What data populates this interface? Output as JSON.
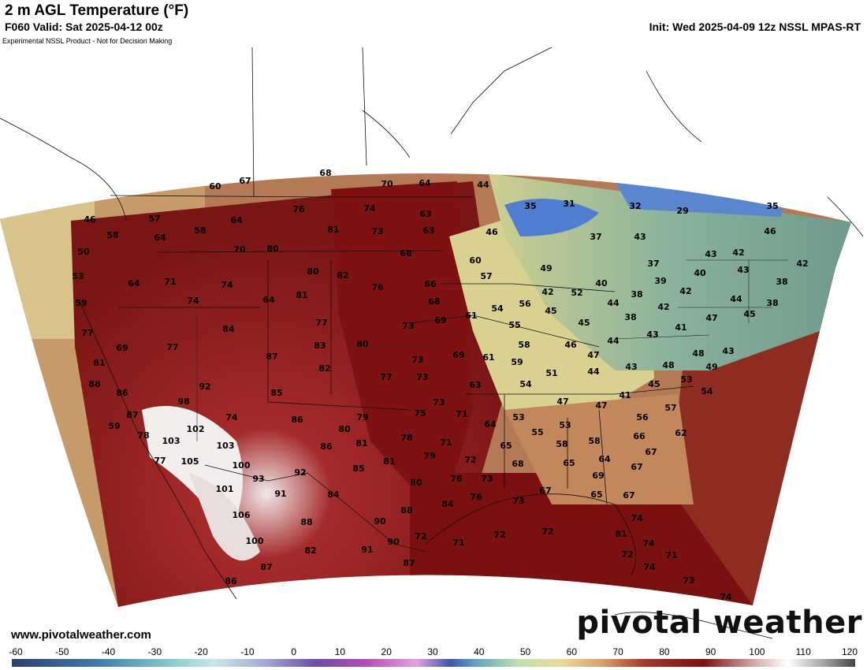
{
  "header": {
    "title": "2 m AGL Temperature (°F)",
    "valid": "F060 Valid: Sat 2025-04-12 00z",
    "init": "Init: Wed 2025-04-09 12z NSSL MPAS-RT",
    "disclaimer": "Experimental NSSL Product - Not for Decision Making"
  },
  "footer": {
    "site": "www.pivotalweather.com",
    "brand": "pivotal weather"
  },
  "colorbar": {
    "ticks": [
      "-60",
      "-50",
      "-40",
      "-30",
      "-20",
      "-10",
      "0",
      "10",
      "20",
      "30",
      "40",
      "50",
      "60",
      "70",
      "80",
      "90",
      "100",
      "110",
      "120"
    ]
  },
  "colors": {
    "cold": "#3f6fc4",
    "cool": "#7fb6a8",
    "mild": "#e7e2a4",
    "warm": "#c46a4c",
    "hot": "#7a1414",
    "veryhot": "#f2eded"
  },
  "temps": [
    {
      "t": "68",
      "pos": [
        413,
        219
      ]
    },
    {
      "t": "67",
      "pos": [
        311,
        229
      ]
    },
    {
      "t": "60",
      "pos": [
        273,
        236
      ]
    },
    {
      "t": "70",
      "pos": [
        491,
        233
      ]
    },
    {
      "t": "64",
      "pos": [
        539,
        232
      ]
    },
    {
      "t": "44",
      "pos": [
        613,
        234
      ]
    },
    {
      "t": "46",
      "pos": [
        114,
        278
      ]
    },
    {
      "t": "57",
      "pos": [
        196,
        277
      ]
    },
    {
      "t": "76",
      "pos": [
        379,
        265
      ]
    },
    {
      "t": "74",
      "pos": [
        469,
        264
      ]
    },
    {
      "t": "63",
      "pos": [
        540,
        271
      ]
    },
    {
      "t": "35",
      "pos": [
        673,
        261
      ]
    },
    {
      "t": "31",
      "pos": [
        722,
        258
      ]
    },
    {
      "t": "32",
      "pos": [
        806,
        261
      ]
    },
    {
      "t": "29",
      "pos": [
        866,
        267
      ]
    },
    {
      "t": "35",
      "pos": [
        980,
        261
      ]
    },
    {
      "t": "58",
      "pos": [
        143,
        298
      ]
    },
    {
      "t": "64",
      "pos": [
        203,
        301
      ]
    },
    {
      "t": "58",
      "pos": [
        254,
        292
      ]
    },
    {
      "t": "64",
      "pos": [
        300,
        279
      ]
    },
    {
      "t": "81",
      "pos": [
        423,
        291
      ]
    },
    {
      "t": "73",
      "pos": [
        479,
        293
      ]
    },
    {
      "t": "63",
      "pos": [
        544,
        292
      ]
    },
    {
      "t": "46",
      "pos": [
        624,
        294
      ]
    },
    {
      "t": "37",
      "pos": [
        756,
        300
      ]
    },
    {
      "t": "43",
      "pos": [
        812,
        300
      ]
    },
    {
      "t": "46",
      "pos": [
        977,
        293
      ]
    },
    {
      "t": "50",
      "pos": [
        106,
        319
      ]
    },
    {
      "t": "70",
      "pos": [
        304,
        316
      ]
    },
    {
      "t": "80",
      "pos": [
        346,
        315
      ]
    },
    {
      "t": "68",
      "pos": [
        515,
        321
      ]
    },
    {
      "t": "60",
      "pos": [
        603,
        330
      ]
    },
    {
      "t": "43",
      "pos": [
        902,
        322
      ]
    },
    {
      "t": "42",
      "pos": [
        937,
        320
      ]
    },
    {
      "t": "42",
      "pos": [
        1018,
        334
      ]
    },
    {
      "t": "53",
      "pos": [
        99,
        350
      ]
    },
    {
      "t": "64",
      "pos": [
        170,
        359
      ]
    },
    {
      "t": "71",
      "pos": [
        216,
        357
      ]
    },
    {
      "t": "74",
      "pos": [
        288,
        361
      ]
    },
    {
      "t": "80",
      "pos": [
        397,
        344
      ]
    },
    {
      "t": "82",
      "pos": [
        435,
        349
      ]
    },
    {
      "t": "57",
      "pos": [
        617,
        350
      ]
    },
    {
      "t": "49",
      "pos": [
        693,
        340
      ]
    },
    {
      "t": "37",
      "pos": [
        829,
        334
      ]
    },
    {
      "t": "40",
      "pos": [
        888,
        346
      ]
    },
    {
      "t": "43",
      "pos": [
        943,
        342
      ]
    },
    {
      "t": "38",
      "pos": [
        992,
        357
      ]
    },
    {
      "t": "59",
      "pos": [
        103,
        384
      ]
    },
    {
      "t": "74",
      "pos": [
        245,
        381
      ]
    },
    {
      "t": "64",
      "pos": [
        341,
        380
      ]
    },
    {
      "t": "81",
      "pos": [
        383,
        374
      ]
    },
    {
      "t": "76",
      "pos": [
        479,
        364
      ]
    },
    {
      "t": "66",
      "pos": [
        546,
        360
      ]
    },
    {
      "t": "42",
      "pos": [
        695,
        370
      ]
    },
    {
      "t": "52",
      "pos": [
        732,
        371
      ]
    },
    {
      "t": "40",
      "pos": [
        763,
        359
      ]
    },
    {
      "t": "39",
      "pos": [
        838,
        356
      ]
    },
    {
      "t": "42",
      "pos": [
        870,
        369
      ]
    },
    {
      "t": "44",
      "pos": [
        934,
        379
      ]
    },
    {
      "t": "38",
      "pos": [
        980,
        384
      ]
    },
    {
      "t": "68",
      "pos": [
        551,
        382
      ]
    },
    {
      "t": "54",
      "pos": [
        631,
        391
      ]
    },
    {
      "t": "56",
      "pos": [
        666,
        385
      ]
    },
    {
      "t": "45",
      "pos": [
        699,
        394
      ]
    },
    {
      "t": "44",
      "pos": [
        778,
        384
      ]
    },
    {
      "t": "38",
      "pos": [
        808,
        373
      ]
    },
    {
      "t": "42",
      "pos": [
        842,
        389
      ]
    },
    {
      "t": "45",
      "pos": [
        951,
        398
      ]
    },
    {
      "t": "77",
      "pos": [
        111,
        422
      ]
    },
    {
      "t": "84",
      "pos": [
        290,
        417
      ]
    },
    {
      "t": "77",
      "pos": [
        408,
        409
      ]
    },
    {
      "t": "73",
      "pos": [
        518,
        413
      ]
    },
    {
      "t": "69",
      "pos": [
        559,
        406
      ]
    },
    {
      "t": "61",
      "pos": [
        598,
        400
      ]
    },
    {
      "t": "55",
      "pos": [
        653,
        412
      ]
    },
    {
      "t": "45",
      "pos": [
        741,
        409
      ]
    },
    {
      "t": "38",
      "pos": [
        800,
        402
      ]
    },
    {
      "t": "47",
      "pos": [
        903,
        403
      ]
    },
    {
      "t": "69",
      "pos": [
        155,
        441
      ]
    },
    {
      "t": "77",
      "pos": [
        219,
        440
      ]
    },
    {
      "t": "83",
      "pos": [
        406,
        438
      ]
    },
    {
      "t": "80",
      "pos": [
        460,
        436
      ]
    },
    {
      "t": "58",
      "pos": [
        665,
        437
      ]
    },
    {
      "t": "46",
      "pos": [
        724,
        437
      ]
    },
    {
      "t": "44",
      "pos": [
        778,
        432
      ]
    },
    {
      "t": "43",
      "pos": [
        828,
        424
      ]
    },
    {
      "t": "41",
      "pos": [
        864,
        415
      ]
    },
    {
      "t": "43",
      "pos": [
        924,
        445
      ]
    },
    {
      "t": "81",
      "pos": [
        126,
        460
      ]
    },
    {
      "t": "87",
      "pos": [
        345,
        452
      ]
    },
    {
      "t": "82",
      "pos": [
        412,
        467
      ]
    },
    {
      "t": "73",
      "pos": [
        530,
        456
      ]
    },
    {
      "t": "69",
      "pos": [
        582,
        450
      ]
    },
    {
      "t": "61",
      "pos": [
        620,
        453
      ]
    },
    {
      "t": "59",
      "pos": [
        656,
        459
      ]
    },
    {
      "t": "47",
      "pos": [
        753,
        450
      ]
    },
    {
      "t": "44",
      "pos": [
        753,
        471
      ]
    },
    {
      "t": "43",
      "pos": [
        801,
        465
      ]
    },
    {
      "t": "48",
      "pos": [
        848,
        463
      ]
    },
    {
      "t": "48",
      "pos": [
        886,
        448
      ]
    },
    {
      "t": "49",
      "pos": [
        903,
        465
      ]
    },
    {
      "t": "88",
      "pos": [
        120,
        487
      ]
    },
    {
      "t": "92",
      "pos": [
        260,
        490
      ]
    },
    {
      "t": "77",
      "pos": [
        490,
        478
      ]
    },
    {
      "t": "73",
      "pos": [
        536,
        478
      ]
    },
    {
      "t": "63",
      "pos": [
        603,
        488
      ]
    },
    {
      "t": "51",
      "pos": [
        700,
        473
      ]
    },
    {
      "t": "54",
      "pos": [
        667,
        487
      ]
    },
    {
      "t": "53",
      "pos": [
        871,
        481
      ]
    },
    {
      "t": "45",
      "pos": [
        830,
        487
      ]
    },
    {
      "t": "54",
      "pos": [
        897,
        496
      ]
    },
    {
      "t": "86",
      "pos": [
        155,
        498
      ]
    },
    {
      "t": "98",
      "pos": [
        233,
        509
      ]
    },
    {
      "t": "85",
      "pos": [
        351,
        498
      ]
    },
    {
      "t": "73",
      "pos": [
        557,
        510
      ]
    },
    {
      "t": "41",
      "pos": [
        793,
        501
      ]
    },
    {
      "t": "47",
      "pos": [
        714,
        509
      ]
    },
    {
      "t": "47",
      "pos": [
        763,
        514
      ]
    },
    {
      "t": "57",
      "pos": [
        851,
        517
      ]
    },
    {
      "t": "87",
      "pos": [
        168,
        526
      ]
    },
    {
      "t": "74",
      "pos": [
        294,
        529
      ]
    },
    {
      "t": "86",
      "pos": [
        377,
        532
      ]
    },
    {
      "t": "79",
      "pos": [
        460,
        529
      ]
    },
    {
      "t": "75",
      "pos": [
        533,
        524
      ]
    },
    {
      "t": "71",
      "pos": [
        586,
        525
      ]
    },
    {
      "t": "53",
      "pos": [
        658,
        529
      ]
    },
    {
      "t": "64",
      "pos": [
        622,
        538
      ]
    },
    {
      "t": "56",
      "pos": [
        815,
        529
      ]
    },
    {
      "t": "59",
      "pos": [
        145,
        540
      ]
    },
    {
      "t": "102",
      "pos": [
        248,
        544
      ]
    },
    {
      "t": "80",
      "pos": [
        437,
        544
      ]
    },
    {
      "t": "78",
      "pos": [
        516,
        555
      ]
    },
    {
      "t": "55",
      "pos": [
        682,
        548
      ]
    },
    {
      "t": "53",
      "pos": [
        717,
        539
      ]
    },
    {
      "t": "58",
      "pos": [
        754,
        559
      ]
    },
    {
      "t": "66",
      "pos": [
        811,
        553
      ]
    },
    {
      "t": "62",
      "pos": [
        864,
        549
      ]
    },
    {
      "t": "78",
      "pos": [
        182,
        552
      ]
    },
    {
      "t": "103",
      "pos": [
        217,
        559
      ]
    },
    {
      "t": "103",
      "pos": [
        286,
        565
      ]
    },
    {
      "t": "86",
      "pos": [
        414,
        566
      ]
    },
    {
      "t": "81",
      "pos": [
        459,
        562
      ]
    },
    {
      "t": "71",
      "pos": [
        566,
        561
      ]
    },
    {
      "t": "65",
      "pos": [
        642,
        565
      ]
    },
    {
      "t": "58",
      "pos": [
        713,
        563
      ]
    },
    {
      "t": "67",
      "pos": [
        826,
        573
      ]
    },
    {
      "t": "77",
      "pos": [
        203,
        584
      ]
    },
    {
      "t": "105",
      "pos": [
        241,
        585
      ]
    },
    {
      "t": "100",
      "pos": [
        306,
        590
      ]
    },
    {
      "t": "81",
      "pos": [
        494,
        585
      ]
    },
    {
      "t": "79",
      "pos": [
        545,
        578
      ]
    },
    {
      "t": "72",
      "pos": [
        597,
        583
      ]
    },
    {
      "t": "68",
      "pos": [
        657,
        588
      ]
    },
    {
      "t": "65",
      "pos": [
        722,
        587
      ]
    },
    {
      "t": "64",
      "pos": [
        767,
        582
      ]
    },
    {
      "t": "67",
      "pos": [
        808,
        592
      ]
    },
    {
      "t": "93",
      "pos": [
        328,
        607
      ]
    },
    {
      "t": "92",
      "pos": [
        381,
        599
      ]
    },
    {
      "t": "85",
      "pos": [
        455,
        594
      ]
    },
    {
      "t": "80",
      "pos": [
        528,
        612
      ]
    },
    {
      "t": "76",
      "pos": [
        579,
        607
      ]
    },
    {
      "t": "73",
      "pos": [
        618,
        607
      ]
    },
    {
      "t": "69",
      "pos": [
        759,
        603
      ]
    },
    {
      "t": "101",
      "pos": [
        285,
        620
      ]
    },
    {
      "t": "91",
      "pos": [
        356,
        626
      ]
    },
    {
      "t": "84",
      "pos": [
        423,
        627
      ]
    },
    {
      "t": "67",
      "pos": [
        692,
        622
      ]
    },
    {
      "t": "76",
      "pos": [
        604,
        630
      ]
    },
    {
      "t": "73",
      "pos": [
        658,
        635
      ]
    },
    {
      "t": "65",
      "pos": [
        757,
        627
      ]
    },
    {
      "t": "67",
      "pos": [
        798,
        628
      ]
    },
    {
      "t": "106",
      "pos": [
        306,
        653
      ]
    },
    {
      "t": "88",
      "pos": [
        389,
        662
      ]
    },
    {
      "t": "90",
      "pos": [
        482,
        661
      ]
    },
    {
      "t": "88",
      "pos": [
        516,
        647
      ]
    },
    {
      "t": "84",
      "pos": [
        568,
        639
      ]
    },
    {
      "t": "72",
      "pos": [
        695,
        674
      ]
    },
    {
      "t": "74",
      "pos": [
        808,
        657
      ]
    },
    {
      "t": "100",
      "pos": [
        323,
        686
      ]
    },
    {
      "t": "82",
      "pos": [
        394,
        698
      ]
    },
    {
      "t": "91",
      "pos": [
        466,
        697
      ]
    },
    {
      "t": "90",
      "pos": [
        499,
        687
      ]
    },
    {
      "t": "72",
      "pos": [
        534,
        680
      ]
    },
    {
      "t": "71",
      "pos": [
        582,
        688
      ]
    },
    {
      "t": "72",
      "pos": [
        634,
        678
      ]
    },
    {
      "t": "81",
      "pos": [
        788,
        677
      ]
    },
    {
      "t": "74",
      "pos": [
        823,
        689
      ]
    },
    {
      "t": "72",
      "pos": [
        796,
        703
      ]
    },
    {
      "t": "87",
      "pos": [
        338,
        719
      ]
    },
    {
      "t": "87",
      "pos": [
        519,
        714
      ]
    },
    {
      "t": "74",
      "pos": [
        824,
        719
      ]
    },
    {
      "t": "71",
      "pos": [
        852,
        704
      ]
    },
    {
      "t": "86",
      "pos": [
        293,
        737
      ]
    },
    {
      "t": "73",
      "pos": [
        874,
        736
      ]
    },
    {
      "t": "74",
      "pos": [
        921,
        757
      ]
    }
  ]
}
